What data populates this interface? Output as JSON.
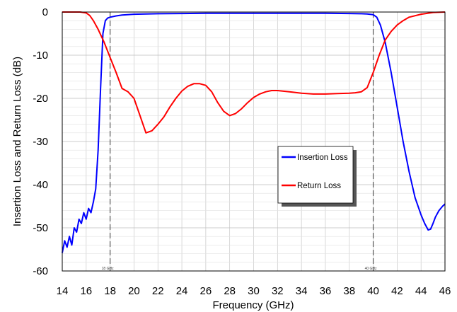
{
  "chart_data": {
    "type": "line",
    "title": "",
    "xlabel": "Frequency (GHz)",
    "ylabel": "Insertion Loss and Return Loss  (dB)",
    "xlim": [
      14,
      46
    ],
    "ylim": [
      -60,
      0
    ],
    "x_ticks": [
      14,
      16,
      18,
      20,
      22,
      24,
      26,
      28,
      30,
      32,
      34,
      36,
      38,
      40,
      42,
      44,
      46
    ],
    "y_ticks": [
      0,
      -10,
      -20,
      -30,
      -40,
      -50,
      -60
    ],
    "grid": true,
    "legend_position": "center-right",
    "markers": [
      {
        "x": 18,
        "label": "18 GHz"
      },
      {
        "x": 40,
        "label": "40 GHz"
      }
    ],
    "series": [
      {
        "name": "Insertion Loss",
        "color": "#0000ff",
        "x": [
          14,
          14.2,
          14.4,
          14.6,
          14.8,
          15.0,
          15.2,
          15.4,
          15.6,
          15.8,
          16.0,
          16.2,
          16.4,
          16.6,
          16.8,
          17.0,
          17.2,
          17.4,
          17.6,
          17.8,
          18.0,
          18.5,
          19,
          20,
          22,
          24,
          26,
          28,
          30,
          32,
          34,
          36,
          38,
          39,
          39.5,
          40,
          40.3,
          40.6,
          41,
          41.5,
          42,
          42.5,
          43,
          43.5,
          44,
          44.3,
          44.6,
          44.8,
          45.0,
          45.2,
          45.5,
          45.8,
          46
        ],
        "values": [
          -55.8,
          -53,
          -54.5,
          -52,
          -54,
          -50,
          -51,
          -48,
          -49,
          -46.5,
          -48,
          -45.5,
          -46.5,
          -44,
          -41,
          -32,
          -18,
          -5,
          -2,
          -1.4,
          -1.2,
          -0.9,
          -0.7,
          -0.5,
          -0.4,
          -0.35,
          -0.3,
          -0.3,
          -0.3,
          -0.3,
          -0.3,
          -0.3,
          -0.35,
          -0.4,
          -0.45,
          -0.6,
          -1.2,
          -3,
          -7,
          -14,
          -22,
          -30,
          -37,
          -43,
          -47,
          -49,
          -50.5,
          -50.3,
          -49,
          -47.5,
          -46,
          -45,
          -44.5
        ]
      },
      {
        "name": "Return Loss",
        "color": "#ff0000",
        "x": [
          14,
          14.5,
          15,
          15.5,
          16,
          16.3,
          16.6,
          17.0,
          17.5,
          18.0,
          18.5,
          19.0,
          19.5,
          20.0,
          20.5,
          21.0,
          21.5,
          22,
          22.5,
          23,
          23.5,
          24,
          24.5,
          25,
          25.5,
          26,
          26.5,
          27,
          27.5,
          28,
          28.5,
          29,
          29.5,
          30,
          30.5,
          31,
          31.5,
          32,
          33,
          34,
          35,
          36,
          37,
          38,
          38.5,
          39,
          39.5,
          40,
          40.5,
          41,
          41.5,
          42,
          42.5,
          43,
          44,
          45,
          46
        ],
        "values": [
          0,
          0,
          0,
          0,
          -0.2,
          -0.8,
          -2,
          -4,
          -7,
          -10.5,
          -14,
          -17.7,
          -18.5,
          -20,
          -24,
          -28,
          -27.5,
          -26,
          -24.3,
          -22,
          -20,
          -18.3,
          -17.2,
          -16.6,
          -16.6,
          -17,
          -18.5,
          -21,
          -23,
          -24,
          -23.5,
          -22.4,
          -21,
          -19.8,
          -19,
          -18.5,
          -18.2,
          -18.2,
          -18.5,
          -18.8,
          -19,
          -19,
          -18.9,
          -18.8,
          -18.7,
          -18.5,
          -17.5,
          -14,
          -10,
          -6.5,
          -4.5,
          -3,
          -2,
          -1.2,
          -0.5,
          -0.1,
          0
        ]
      }
    ]
  }
}
